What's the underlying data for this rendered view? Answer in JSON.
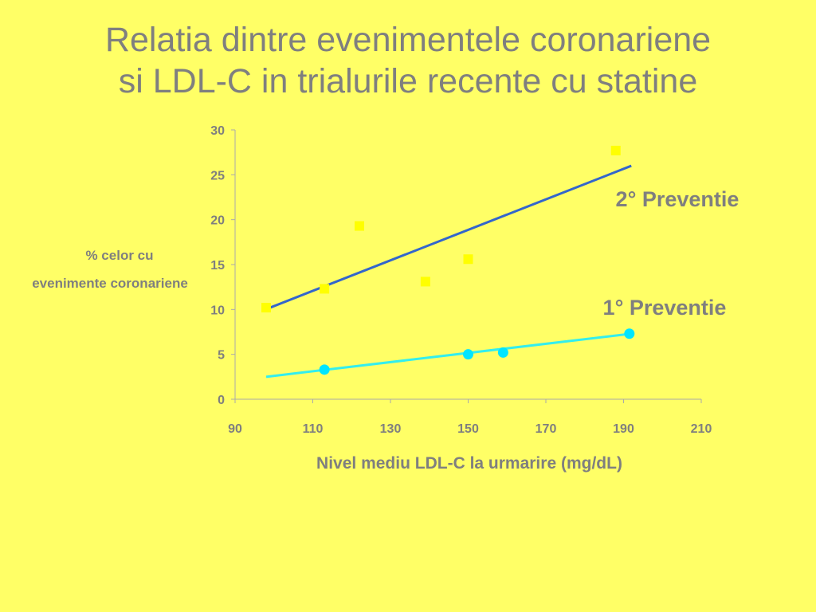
{
  "slide": {
    "title_line1": "Relatia dintre evenimentele coronariene",
    "title_line2": "si LDL-C in trialurile recente cu statine"
  },
  "colors": {
    "background": "#FFFF66",
    "text": "#7F7F7F",
    "secondary_line": "#3366CC",
    "secondary_marker": "#FFFF00",
    "primary_line": "#33EEEE",
    "primary_marker": "#00E5FF",
    "axis": "#AAAAAA"
  },
  "chart_data": {
    "type": "scatter",
    "xlabel": "Nivel mediu LDL-C la urmarire (mg/dL)",
    "ylabel_line1": "% celor cu",
    "ylabel_line2": "evenimente coronariene",
    "xlim": [
      90,
      210
    ],
    "ylim": [
      0,
      30
    ],
    "x_ticks": [
      "90",
      "110",
      "130",
      "150",
      "170",
      "190",
      "210"
    ],
    "y_ticks": [
      "0",
      "5",
      "10",
      "15",
      "20",
      "25",
      "30"
    ],
    "grid": false,
    "series": [
      {
        "name": "2° Preventie",
        "marker": "square",
        "points": [
          [
            98,
            10.2
          ],
          [
            113,
            12.3
          ],
          [
            122,
            19.3
          ],
          [
            139,
            13.1
          ],
          [
            150,
            15.6
          ],
          [
            188,
            27.7
          ]
        ],
        "trendline": [
          [
            99,
            10.2
          ],
          [
            192,
            26
          ]
        ]
      },
      {
        "name": "1° Preventie",
        "marker": "circle",
        "points": [
          [
            113,
            3.3
          ],
          [
            150,
            5.0
          ],
          [
            159,
            5.2
          ],
          [
            191.5,
            7.3
          ]
        ],
        "trendline": [
          [
            98,
            2.5
          ],
          [
            192,
            7.3
          ]
        ]
      }
    ]
  }
}
